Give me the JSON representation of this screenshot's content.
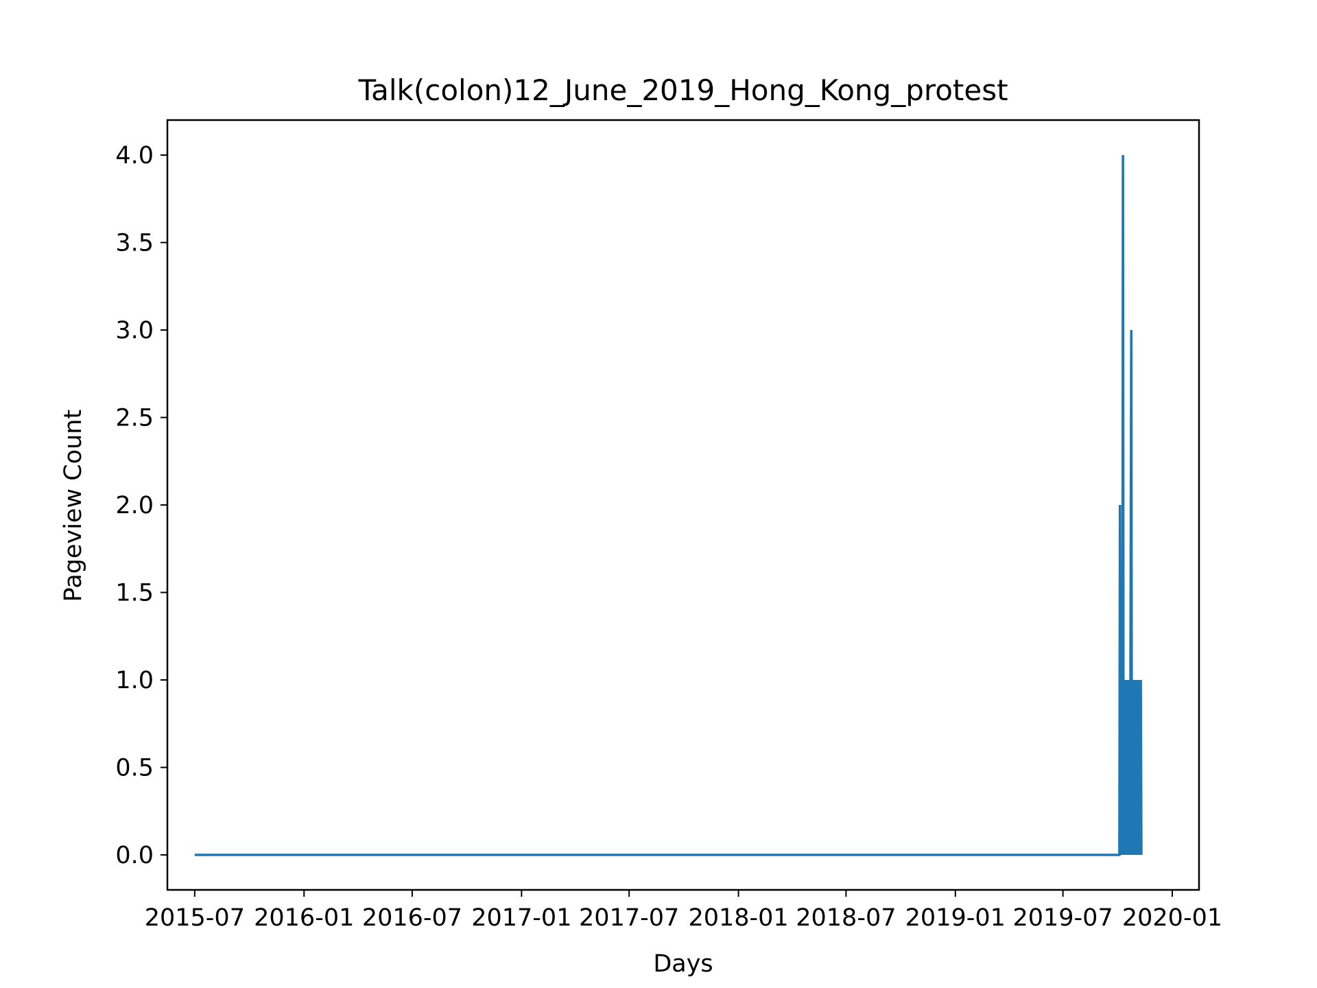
{
  "chart_data": {
    "type": "line",
    "title": "Talk(colon)12_June_2019_Hong_Kong_protest",
    "xlabel": "Days",
    "ylabel": "Pageview Count",
    "x_axis_type": "date",
    "xlim": [
      "2015-05-16",
      "2020-02-15"
    ],
    "ylim": [
      -0.2,
      4.2
    ],
    "x_ticks": [
      "2015-07",
      "2016-01",
      "2016-07",
      "2017-01",
      "2017-07",
      "2018-01",
      "2018-07",
      "2019-01",
      "2019-07",
      "2020-01"
    ],
    "y_ticks": [
      "0.0",
      "0.5",
      "1.0",
      "1.5",
      "2.0",
      "2.5",
      "3.0",
      "3.5",
      "4.0"
    ],
    "grid": false,
    "legend": "none",
    "series": [
      {
        "color": "#1f77b4",
        "points": [
          [
            "2015-07-01",
            0
          ],
          [
            "2019-10-04",
            0
          ],
          [
            "2019-10-05",
            2
          ],
          [
            "2019-10-06",
            0
          ],
          [
            "2019-10-08",
            1
          ],
          [
            "2019-10-09",
            0
          ],
          [
            "2019-10-10",
            4
          ],
          [
            "2019-10-11",
            0
          ],
          [
            "2019-10-12",
            1
          ],
          [
            "2019-10-13",
            0
          ],
          [
            "2019-10-15",
            1
          ],
          [
            "2019-10-16",
            0
          ],
          [
            "2019-10-18",
            1
          ],
          [
            "2019-10-19",
            0
          ],
          [
            "2019-10-21",
            1
          ],
          [
            "2019-10-22",
            0
          ],
          [
            "2019-10-24",
            3
          ],
          [
            "2019-10-25",
            0
          ],
          [
            "2019-10-26",
            1
          ],
          [
            "2019-10-27",
            0
          ],
          [
            "2019-10-28",
            1
          ],
          [
            "2019-10-29",
            0
          ],
          [
            "2019-10-30",
            1
          ],
          [
            "2019-10-31",
            0
          ],
          [
            "2019-11-01",
            1
          ],
          [
            "2019-11-02",
            0
          ],
          [
            "2019-11-03",
            1
          ],
          [
            "2019-11-04",
            0
          ],
          [
            "2019-11-05",
            1
          ],
          [
            "2019-11-06",
            0
          ],
          [
            "2019-11-07",
            1
          ],
          [
            "2019-11-08",
            0
          ],
          [
            "2019-11-09",
            1
          ],
          [
            "2019-11-10",
            0
          ]
        ]
      }
    ]
  }
}
